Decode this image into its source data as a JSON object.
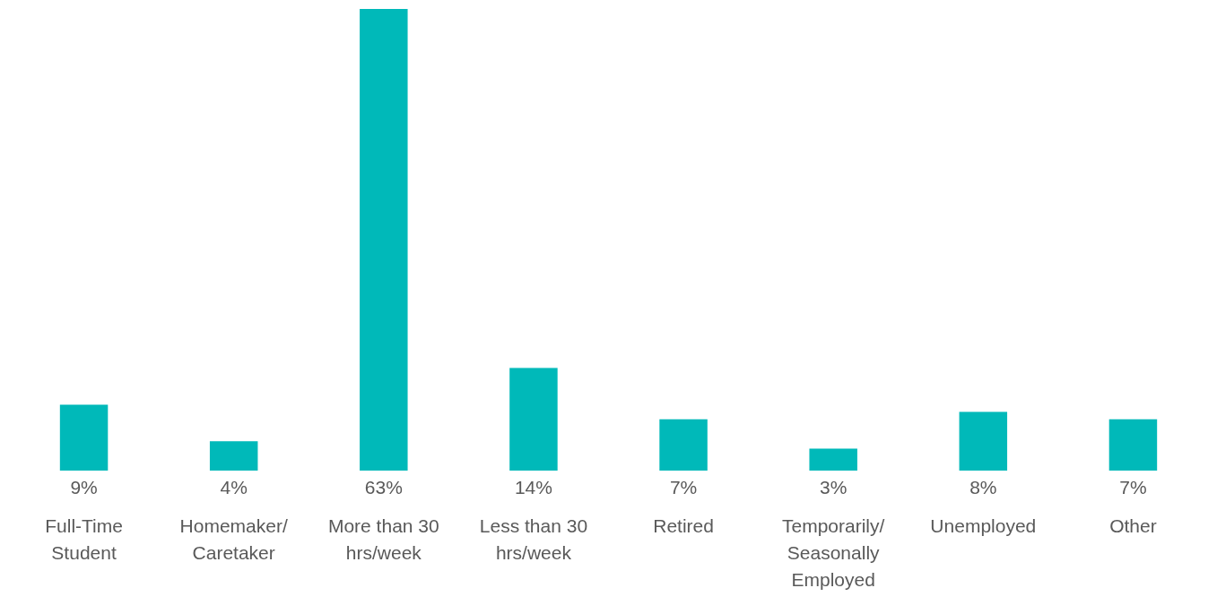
{
  "chart_data": {
    "type": "bar",
    "categories": [
      "Full-Time Student",
      "Homemaker/ Caretaker",
      "More than 30 hrs/week",
      "Less than 30 hrs/week",
      "Retired",
      "Temporarily/ Seasonally Employed",
      "Unemployed",
      "Other"
    ],
    "values": [
      9,
      4,
      63,
      14,
      7,
      3,
      8,
      7
    ],
    "value_labels": [
      "9%",
      "4%",
      "63%",
      "14%",
      "7%",
      "3%",
      "8%",
      "7%"
    ],
    "color": "#00b9b9",
    "grid": false
  }
}
